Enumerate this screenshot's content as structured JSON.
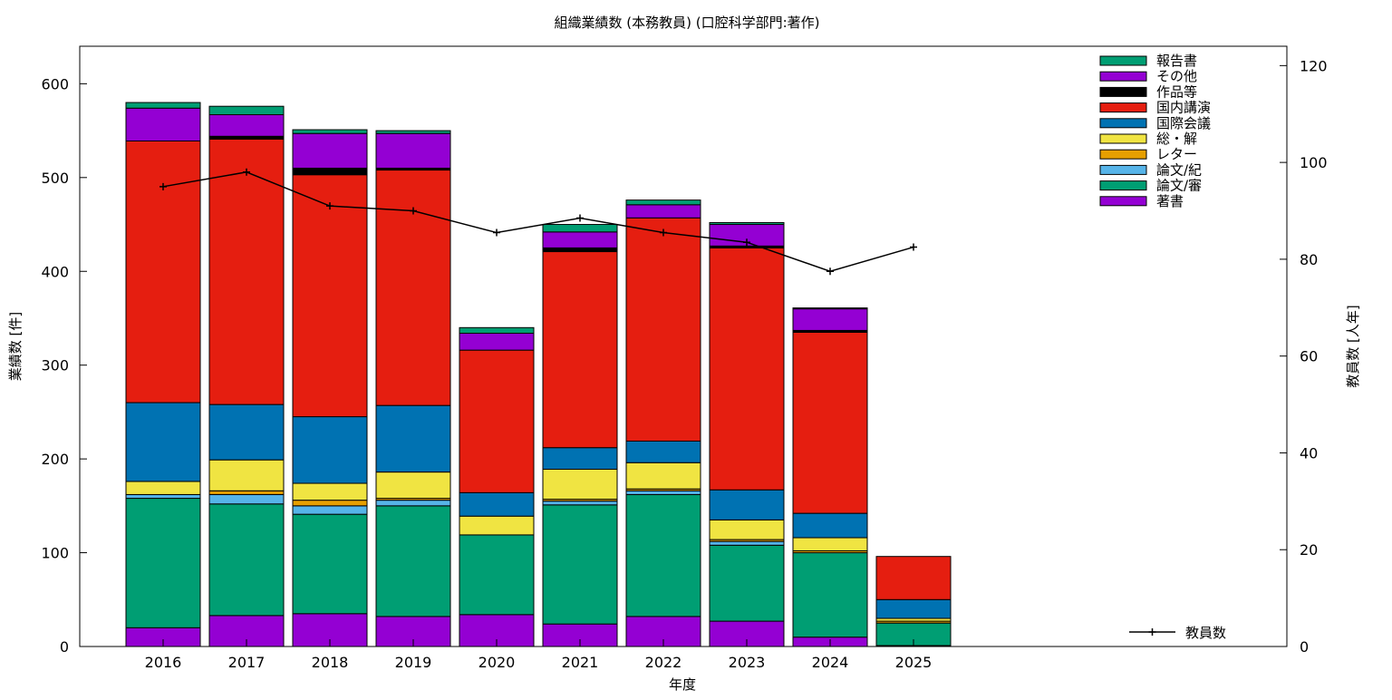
{
  "chart_data": {
    "type": "bar",
    "subtype": "stacked bar with line overlay (secondary y-axis)",
    "title": "組織業績数 (本務教員) (口腔科学部門:著作)",
    "xlabel": "年度",
    "ylabel": "業績数 [件]",
    "y2label": "教員数 [人年]",
    "categories": [
      "2016",
      "2017",
      "2018",
      "2019",
      "2020",
      "2021",
      "2022",
      "2023",
      "2024",
      "2025"
    ],
    "ylim": [
      0,
      640
    ],
    "yticks": [
      0,
      100,
      200,
      300,
      400,
      500,
      600
    ],
    "y2lim": [
      0,
      124
    ],
    "y2ticks": [
      0,
      20,
      40,
      60,
      80,
      100,
      120
    ],
    "grid": false,
    "legend_position": "top-right",
    "series": [
      {
        "name": "著書",
        "color": "#9400d3",
        "values": [
          20,
          33,
          35,
          32,
          34,
          24,
          32,
          27,
          10,
          1
        ]
      },
      {
        "name": "論文/審",
        "color": "#009e73",
        "values": [
          138,
          119,
          106,
          118,
          85,
          127,
          130,
          81,
          90,
          24
        ]
      },
      {
        "name": "論文/紀",
        "color": "#56b4e9",
        "values": [
          4,
          10,
          9,
          6,
          0,
          4,
          4,
          4,
          0,
          0
        ]
      },
      {
        "name": "レター",
        "color": "#e69f00",
        "values": [
          0,
          4,
          6,
          2,
          0,
          2,
          2,
          2,
          2,
          2
        ]
      },
      {
        "name": "総・解",
        "color": "#f0e442",
        "values": [
          14,
          33,
          18,
          28,
          20,
          32,
          28,
          21,
          14,
          3
        ]
      },
      {
        "name": "国際会議",
        "color": "#0072b2",
        "values": [
          84,
          59,
          71,
          71,
          25,
          23,
          23,
          32,
          26,
          20
        ]
      },
      {
        "name": "国内講演",
        "color": "#e51e10",
        "values": [
          279,
          283,
          258,
          251,
          152,
          209,
          238,
          258,
          193,
          46
        ]
      },
      {
        "name": "作品等",
        "color": "#000000",
        "values": [
          0,
          3,
          7,
          2,
          0,
          4,
          0,
          2,
          2,
          0
        ]
      },
      {
        "name": "その他",
        "color": "#9400d3",
        "values": [
          35,
          23,
          37,
          37,
          18,
          17,
          14,
          23,
          23,
          0
        ]
      },
      {
        "name": "報告書",
        "color": "#009e73",
        "values": [
          6,
          9,
          4,
          3,
          6,
          8,
          5,
          2,
          1,
          0
        ]
      }
    ],
    "line_series": {
      "name": "教員数",
      "axis": "y2",
      "color": "#000000",
      "values": [
        95,
        98,
        91,
        90,
        85.5,
        88.5,
        85.5,
        83.5,
        77.5,
        82.5
      ]
    }
  }
}
